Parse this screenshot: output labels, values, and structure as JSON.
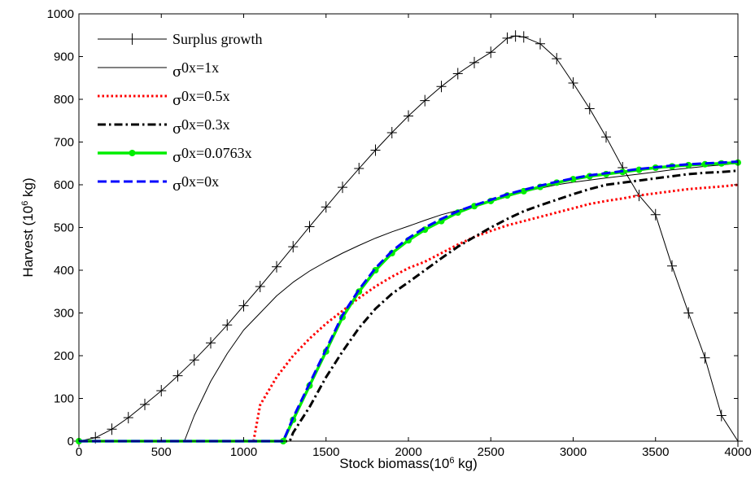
{
  "chart_data": {
    "type": "line",
    "title": "",
    "xlabel": "Stock biomass(10",
    "xlabel_sup": "6",
    "xlabel_unit": " kg)",
    "ylabel": "Harvest (10",
    "ylabel_sup": "6",
    "ylabel_unit": " kg)",
    "xlim": [
      0,
      4000
    ],
    "ylim": [
      0,
      1000
    ],
    "xticks": [
      "0",
      "500",
      "1000",
      "1500",
      "2000",
      "2500",
      "3000",
      "3500",
      "4000"
    ],
    "yticks": [
      "0",
      "100",
      "200",
      "300",
      "400",
      "500",
      "600",
      "700",
      "800",
      "900",
      "1000"
    ],
    "grid": false,
    "legend_position": "top-left",
    "series": [
      {
        "name": "Surplus growth",
        "color": "#000000",
        "style": "solid-plus",
        "x": [
          0,
          100,
          200,
          300,
          400,
          500,
          600,
          700,
          800,
          900,
          1000,
          1100,
          1200,
          1300,
          1400,
          1500,
          1600,
          1700,
          1800,
          1900,
          2000,
          2100,
          2200,
          2300,
          2400,
          2500,
          2600,
          2650,
          2700,
          2800,
          2900,
          3000,
          3100,
          3200,
          3300,
          3400,
          3500,
          3600,
          3700,
          3800,
          3900,
          4000
        ],
        "y": [
          0,
          8,
          28,
          55,
          86,
          118,
          153,
          190,
          230,
          272,
          317,
          362,
          408,
          455,
          502,
          548,
          594,
          638,
          681,
          722,
          761,
          797,
          830,
          860,
          886,
          910,
          943,
          948,
          946,
          930,
          895,
          838,
          778,
          712,
          640,
          575,
          530,
          410,
          300,
          195,
          60,
          0
        ]
      },
      {
        "name": "0x=1x",
        "sigma": true,
        "color": "#000000",
        "style": "thin",
        "x": [
          0,
          640,
          700,
          800,
          900,
          1000,
          1100,
          1200,
          1300,
          1400,
          1500,
          1600,
          1700,
          1800,
          1900,
          2000,
          2100,
          2200,
          2300,
          2400,
          2500,
          2600,
          2700,
          2800,
          2900,
          3000,
          3200,
          3400,
          3600,
          3800,
          4000
        ],
        "y": [
          0,
          0,
          60,
          140,
          205,
          260,
          300,
          340,
          372,
          398,
          420,
          440,
          458,
          475,
          490,
          503,
          517,
          530,
          540,
          550,
          560,
          572,
          583,
          592,
          600,
          606,
          616,
          625,
          635,
          643,
          650
        ]
      },
      {
        "name": "0x=0.5x",
        "sigma": true,
        "color": "#ff0000",
        "style": "dotted",
        "x": [
          0,
          1060,
          1100,
          1200,
          1300,
          1400,
          1500,
          1600,
          1700,
          1800,
          1900,
          2000,
          2100,
          2200,
          2300,
          2400,
          2500,
          2600,
          2700,
          2800,
          2900,
          3000,
          3100,
          3200,
          3300,
          3400,
          3500,
          3600,
          3700,
          3800,
          3900,
          4000
        ],
        "y": [
          0,
          0,
          85,
          150,
          200,
          240,
          275,
          305,
          335,
          362,
          385,
          405,
          420,
          440,
          460,
          478,
          492,
          505,
          515,
          525,
          535,
          545,
          555,
          562,
          568,
          575,
          580,
          585,
          590,
          593,
          596,
          600
        ]
      },
      {
        "name": "0x=0.3x",
        "sigma": true,
        "color": "#000000",
        "style": "dashdot",
        "x": [
          0,
          1280,
          1300,
          1400,
          1500,
          1600,
          1700,
          1800,
          1900,
          2000,
          2100,
          2200,
          2300,
          2400,
          2500,
          2600,
          2700,
          2800,
          2900,
          3000,
          3100,
          3200,
          3300,
          3400,
          3500,
          3600,
          3700,
          3800,
          3900,
          4000
        ],
        "y": [
          0,
          0,
          20,
          80,
          150,
          210,
          265,
          310,
          345,
          372,
          400,
          428,
          455,
          478,
          500,
          520,
          538,
          552,
          565,
          578,
          590,
          600,
          605,
          610,
          615,
          620,
          625,
          628,
          630,
          633
        ]
      },
      {
        "name": "0x=0.0763x",
        "sigma": true,
        "color": "#00ee00",
        "style": "solid-dot",
        "x": [
          0,
          1240,
          1300,
          1400,
          1500,
          1600,
          1700,
          1800,
          1900,
          2000,
          2100,
          2200,
          2300,
          2400,
          2500,
          2600,
          2700,
          2800,
          2900,
          3000,
          3100,
          3200,
          3300,
          3400,
          3500,
          3600,
          3700,
          3800,
          3900,
          4000
        ],
        "y": [
          0,
          0,
          50,
          130,
          210,
          290,
          350,
          400,
          440,
          470,
          495,
          515,
          535,
          550,
          562,
          575,
          585,
          595,
          605,
          613,
          620,
          625,
          630,
          635,
          640,
          643,
          646,
          648,
          650,
          652
        ]
      },
      {
        "name": "0x=0x",
        "sigma": true,
        "color": "#0000ff",
        "style": "dashed",
        "x": [
          0,
          1240,
          1300,
          1400,
          1500,
          1600,
          1700,
          1800,
          1900,
          2000,
          2100,
          2200,
          2300,
          2400,
          2500,
          2600,
          2700,
          2800,
          2900,
          3000,
          3100,
          3200,
          3300,
          3400,
          3500,
          3600,
          3700,
          3800,
          3900,
          4000
        ],
        "y": [
          0,
          0,
          55,
          135,
          215,
          295,
          355,
          405,
          445,
          475,
          500,
          520,
          538,
          552,
          565,
          578,
          588,
          598,
          607,
          615,
          622,
          627,
          632,
          637,
          641,
          645,
          648,
          650,
          652,
          654
        ]
      }
    ]
  }
}
